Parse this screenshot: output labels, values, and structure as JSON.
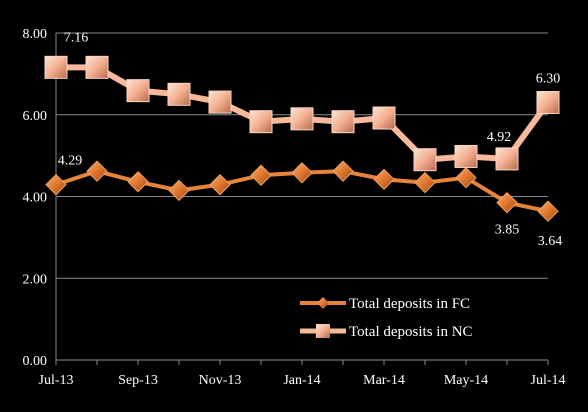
{
  "chart_data": {
    "type": "line",
    "title": "",
    "xlabel": "",
    "ylabel": "",
    "ylim": [
      0,
      8
    ],
    "y_ticks": [
      "0.00",
      "2.00",
      "4.00",
      "6.00",
      "8.00"
    ],
    "x": [
      "Jul-13",
      "Aug-13",
      "Sep-13",
      "Oct-13",
      "Nov-13",
      "Dec-13",
      "Jan-14",
      "Feb-14",
      "Mar-14",
      "Apr-14",
      "May-14",
      "Jun-14",
      "Jul-14"
    ],
    "x_tick_labels": [
      "Jul-13",
      "Sep-13",
      "Nov-13",
      "Jan-14",
      "Mar-14",
      "May-14",
      "Jul-14"
    ],
    "grid": "horizontal",
    "legend_position": "bottom-right",
    "series": [
      {
        "name": "Total deposits in FC",
        "color": "#e8843a",
        "marker": "diamond",
        "values": [
          4.29,
          4.62,
          4.36,
          4.15,
          4.29,
          4.52,
          4.58,
          4.62,
          4.42,
          4.34,
          4.46,
          3.85,
          3.64
        ],
        "data_labels": [
          {
            "index": 0,
            "text": "4.29"
          },
          {
            "index": 11,
            "text": "3.85"
          },
          {
            "index": 12,
            "text": "3.64"
          }
        ]
      },
      {
        "name": "Total deposits in NC",
        "color": "#f6b99a",
        "marker": "square",
        "values": [
          7.16,
          7.16,
          6.59,
          6.5,
          6.31,
          5.83,
          5.9,
          5.83,
          5.92,
          4.9,
          4.98,
          4.92,
          6.3
        ],
        "data_labels": [
          {
            "index": 0,
            "text": "7.16"
          },
          {
            "index": 11,
            "text": "4.92"
          },
          {
            "index": 12,
            "text": "6.30"
          }
        ]
      }
    ]
  }
}
